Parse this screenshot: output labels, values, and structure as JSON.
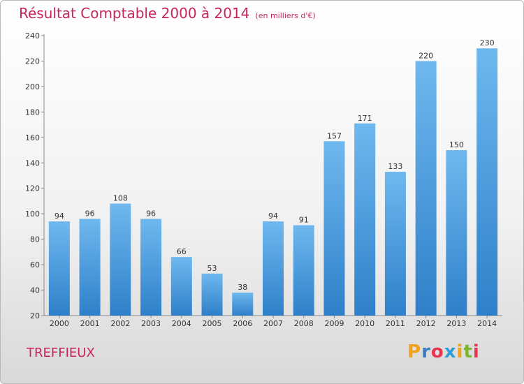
{
  "header": {
    "title": "Résultat Comptable 2000 à 2014",
    "subtitle": "(en milliers d'€)"
  },
  "footer": {
    "town": "TREFFIEUX",
    "logo_letters": [
      "P",
      "r",
      "o",
      "x",
      "i",
      "t",
      "i"
    ],
    "logo_colors": [
      "#f0a21b",
      "#3b7dc4",
      "#e8344e",
      "#2f9bd6",
      "#f0a21b",
      "#7db335",
      "#e8344e"
    ]
  },
  "chart_data": {
    "type": "bar",
    "categories": [
      "2000",
      "2001",
      "2002",
      "2003",
      "2004",
      "2005",
      "2006",
      "2007",
      "2008",
      "2009",
      "2010",
      "2011",
      "2012",
      "2013",
      "2014"
    ],
    "values": [
      94,
      96,
      108,
      96,
      66,
      53,
      38,
      94,
      91,
      157,
      171,
      133,
      220,
      150,
      230
    ],
    "title": "Résultat Comptable 2000 à 2014",
    "subtitle": "(en milliers d'€)",
    "ylim": [
      20,
      240
    ],
    "yticks": [
      20,
      40,
      60,
      80,
      100,
      120,
      140,
      160,
      180,
      200,
      220,
      240
    ],
    "grid": false,
    "colors": {
      "bar_light": "#6fb8ef",
      "bar_dark": "#2f80c9",
      "axis": "#8a8a8a"
    }
  }
}
